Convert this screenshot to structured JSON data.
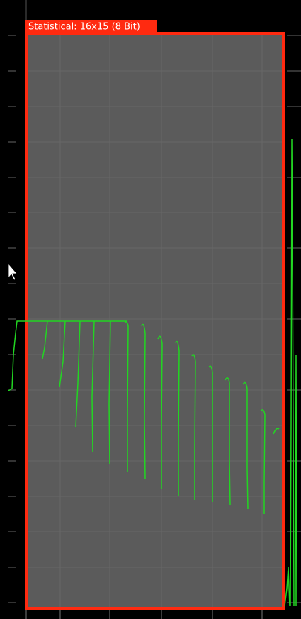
{
  "tab": {
    "label": "Statistical: 16x15 (8 Bit)"
  }
}
